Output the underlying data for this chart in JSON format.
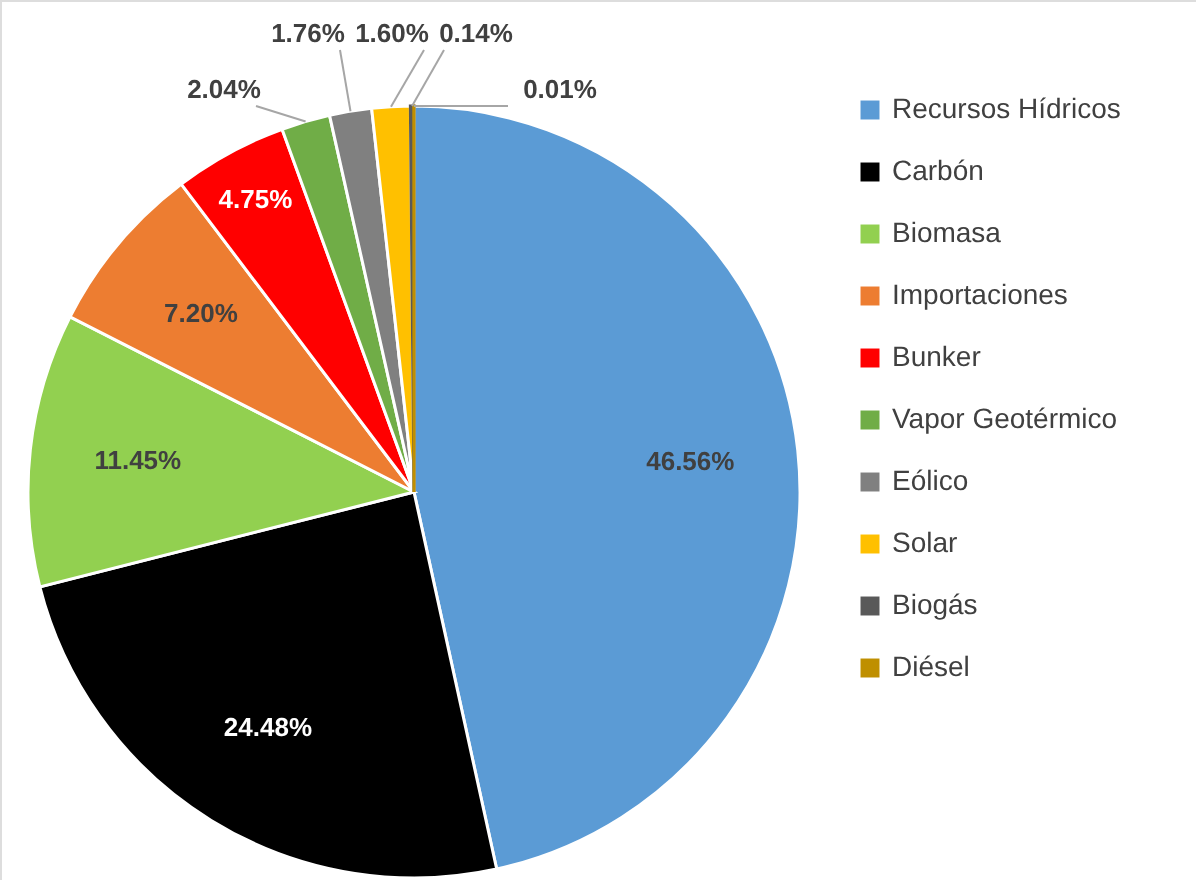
{
  "chart_data": {
    "type": "pie",
    "categories": [
      "Recursos Hídricos",
      "Carbón",
      "Biomasa",
      "Importaciones",
      "Bunker",
      "Vapor Geotérmico",
      "Eólico",
      "Solar",
      "Biogás",
      "Diésel"
    ],
    "values": [
      46.56,
      24.48,
      11.45,
      7.2,
      4.75,
      2.04,
      1.76,
      1.6,
      0.14,
      0.01
    ],
    "value_labels": [
      "46.56%",
      "24.48%",
      "11.45%",
      "7.20%",
      "4.75%",
      "2.04%",
      "1.76%",
      "1.60%",
      "0.14%",
      "0.01%"
    ],
    "colors": [
      "#5b9bd5",
      "#000000",
      "#92d050",
      "#ed7d31",
      "#ff0000",
      "#70ad47",
      "#808080",
      "#ffc000",
      "#595959",
      "#bf8f00"
    ],
    "legend": "right"
  }
}
